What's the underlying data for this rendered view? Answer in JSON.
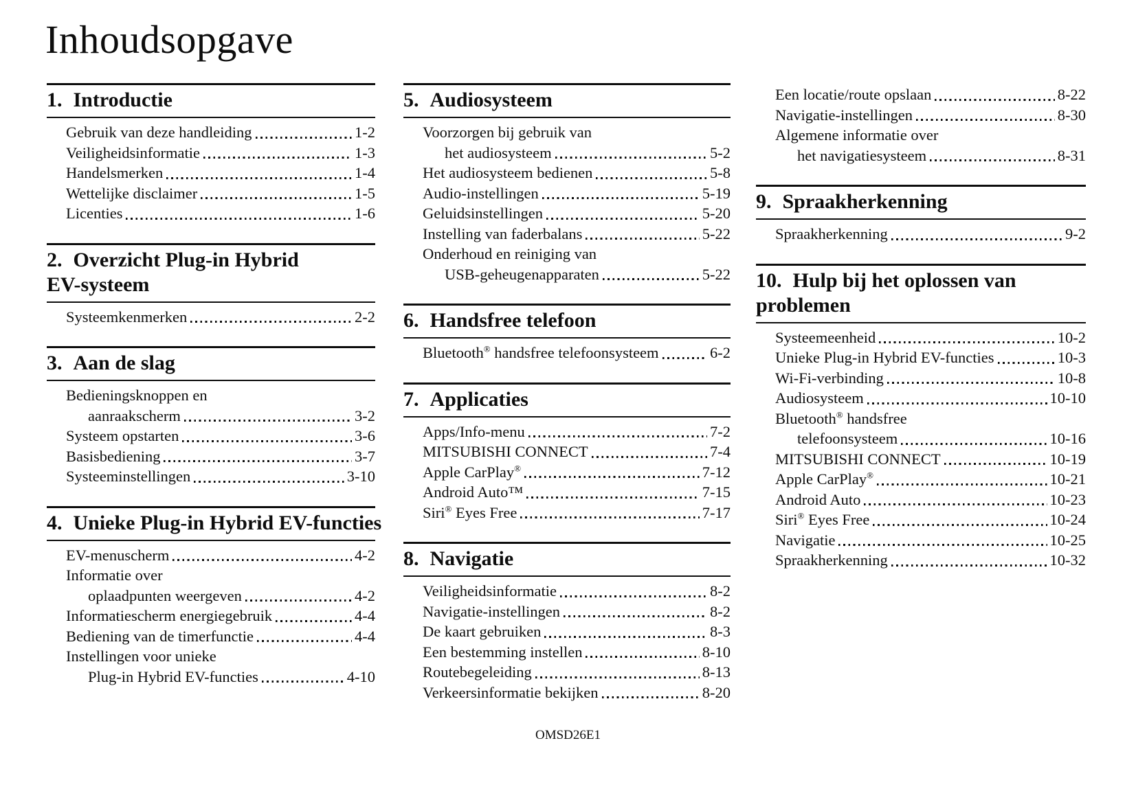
{
  "page": {
    "title": "Inhoudsopgave",
    "footer_code": "OMSD26E1",
    "text_color": "#0d0d0d",
    "background": "#ffffff"
  },
  "columns": [
    {
      "sections": [
        {
          "num": "1.",
          "heading_lines": [
            "Introductie"
          ],
          "items": [
            {
              "lines": [
                "Gebruik van deze handleiding"
              ],
              "page": "1-2"
            },
            {
              "lines": [
                "Veiligheidsinformatie"
              ],
              "page": "1-3"
            },
            {
              "lines": [
                "Handelsmerken"
              ],
              "page": "1-4"
            },
            {
              "lines": [
                "Wettelijke disclaimer"
              ],
              "page": "1-5"
            },
            {
              "lines": [
                "Licenties"
              ],
              "page": "1-6"
            }
          ]
        },
        {
          "num": "2.",
          "heading_lines": [
            "Overzicht Plug-in Hybrid",
            "EV-systeem"
          ],
          "items": [
            {
              "lines": [
                "Systeemkenmerken"
              ],
              "page": "2-2"
            }
          ]
        },
        {
          "num": "3.",
          "heading_lines": [
            "Aan de slag"
          ],
          "items": [
            {
              "lines": [
                "Bedieningsknoppen en",
                "aanraakscherm"
              ],
              "page": "3-2"
            },
            {
              "lines": [
                "Systeem opstarten"
              ],
              "page": "3-6"
            },
            {
              "lines": [
                "Basisbediening"
              ],
              "page": "3-7"
            },
            {
              "lines": [
                "Systeeminstellingen"
              ],
              "page": "3-10"
            }
          ]
        },
        {
          "num": "4.",
          "heading_lines": [
            "Unieke Plug-in Hybrid EV-functies"
          ],
          "items": [
            {
              "lines": [
                "EV-menuscherm"
              ],
              "page": "4-2"
            },
            {
              "lines": [
                "Informatie over",
                "oplaadpunten weergeven"
              ],
              "page": "4-2"
            },
            {
              "lines": [
                "Informatiescherm energiegebruik"
              ],
              "page": "4-4"
            },
            {
              "lines": [
                "Bediening van de timerfunctie"
              ],
              "page": "4-4"
            },
            {
              "lines": [
                "Instellingen voor unieke",
                "Plug-in Hybrid EV-functies"
              ],
              "page": "4-10"
            }
          ]
        }
      ]
    },
    {
      "sections": [
        {
          "num": "5.",
          "heading_lines": [
            "Audiosysteem"
          ],
          "items": [
            {
              "lines": [
                "Voorzorgen bij gebruik van",
                "het audiosysteem"
              ],
              "page": "5-2"
            },
            {
              "lines": [
                "Het audiosysteem bedienen"
              ],
              "page": "5-8"
            },
            {
              "lines": [
                "Audio-instellingen"
              ],
              "page": "5-19"
            },
            {
              "lines": [
                "Geluidsinstellingen"
              ],
              "page": "5-20"
            },
            {
              "lines": [
                "Instelling van faderbalans"
              ],
              "page": "5-22"
            },
            {
              "lines": [
                "Onderhoud en reiniging van",
                "USB-geheugenapparaten"
              ],
              "page": "5-22"
            }
          ]
        },
        {
          "num": "6.",
          "heading_lines": [
            "Handsfree telefoon"
          ],
          "items": [
            {
              "lines": [
                [
                  {
                    "t": "Bluetooth"
                  },
                  {
                    "t": "®",
                    "sup": true
                  },
                  {
                    "t": " handsfree telefoonsysteem"
                  }
                ]
              ],
              "page": "6-2"
            }
          ]
        },
        {
          "num": "7.",
          "heading_lines": [
            "Applicaties"
          ],
          "items": [
            {
              "lines": [
                "Apps/Info-menu"
              ],
              "page": "7-2"
            },
            {
              "lines": [
                "MITSUBISHI CONNECT"
              ],
              "page": "7-4"
            },
            {
              "lines": [
                [
                  {
                    "t": "Apple CarPlay"
                  },
                  {
                    "t": "®",
                    "sup": true
                  }
                ]
              ],
              "page": "7-12"
            },
            {
              "lines": [
                "Android Auto™"
              ],
              "page": "7-15"
            },
            {
              "lines": [
                [
                  {
                    "t": "Siri"
                  },
                  {
                    "t": "®",
                    "sup": true
                  },
                  {
                    "t": " Eyes Free"
                  }
                ]
              ],
              "page": "7-17"
            }
          ]
        },
        {
          "num": "8.",
          "heading_lines": [
            "Navigatie"
          ],
          "items": [
            {
              "lines": [
                "Veiligheidsinformatie"
              ],
              "page": "8-2"
            },
            {
              "lines": [
                "Navigatie-instellingen"
              ],
              "page": "8-2"
            },
            {
              "lines": [
                "De kaart gebruiken"
              ],
              "page": "8-3"
            },
            {
              "lines": [
                "Een bestemming instellen"
              ],
              "page": "8-10"
            },
            {
              "lines": [
                "Routebegeleiding"
              ],
              "page": "8-13"
            },
            {
              "lines": [
                "Verkeersinformatie bekijken"
              ],
              "page": "8-20"
            }
          ]
        }
      ]
    },
    {
      "sections": [
        {
          "continuation": true,
          "items": [
            {
              "lines": [
                "Een locatie/route opslaan"
              ],
              "page": "8-22"
            },
            {
              "lines": [
                "Navigatie-instellingen"
              ],
              "page": "8-30"
            },
            {
              "lines": [
                "Algemene informatie over",
                "het navigatiesysteem"
              ],
              "page": "8-31"
            }
          ]
        },
        {
          "num": "9.",
          "heading_lines": [
            "Spraakherkenning"
          ],
          "items": [
            {
              "lines": [
                "Spraakherkenning"
              ],
              "page": "9-2"
            }
          ]
        },
        {
          "num": "10.",
          "heading_lines": [
            "Hulp bij het oplossen van",
            "problemen"
          ],
          "items": [
            {
              "lines": [
                "Systeemeenheid"
              ],
              "page": "10-2"
            },
            {
              "lines": [
                "Unieke Plug-in Hybrid EV-functies"
              ],
              "page": "10-3"
            },
            {
              "lines": [
                "Wi-Fi-verbinding"
              ],
              "page": "10-8"
            },
            {
              "lines": [
                "Audiosysteem"
              ],
              "page": "10-10"
            },
            {
              "lines": [
                [
                  {
                    "t": "Bluetooth"
                  },
                  {
                    "t": "®",
                    "sup": true
                  },
                  {
                    "t": " handsfree"
                  }
                ],
                "telefoonsysteem"
              ],
              "page": "10-16"
            },
            {
              "lines": [
                "MITSUBISHI CONNECT"
              ],
              "page": "10-19"
            },
            {
              "lines": [
                [
                  {
                    "t": "Apple CarPlay"
                  },
                  {
                    "t": "®",
                    "sup": true
                  }
                ]
              ],
              "page": "10-21"
            },
            {
              "lines": [
                "Android Auto"
              ],
              "page": "10-23"
            },
            {
              "lines": [
                [
                  {
                    "t": "Siri"
                  },
                  {
                    "t": "®",
                    "sup": true
                  },
                  {
                    "t": " Eyes Free"
                  }
                ]
              ],
              "page": "10-24"
            },
            {
              "lines": [
                "Navigatie"
              ],
              "page": "10-25"
            },
            {
              "lines": [
                "Spraakherkenning"
              ],
              "page": "10-32"
            }
          ]
        }
      ]
    }
  ]
}
